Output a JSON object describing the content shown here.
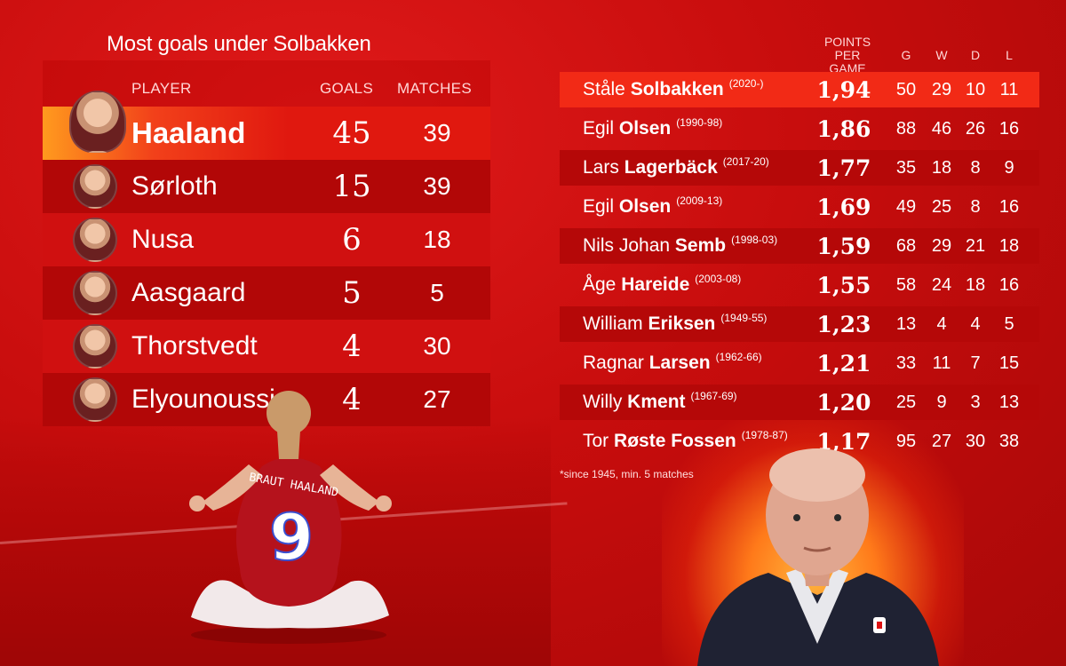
{
  "left": {
    "title": "Most goals under Solbakken",
    "headers": {
      "player": "PLAYER",
      "goals": "GOALS",
      "matches": "MATCHES"
    },
    "rows": [
      {
        "name": "Haaland",
        "goals": "45",
        "matches": "39"
      },
      {
        "name": "Sørloth",
        "goals": "15",
        "matches": "39"
      },
      {
        "name": "Nusa",
        "goals": "6",
        "matches": "18"
      },
      {
        "name": "Aasgaard",
        "goals": "5",
        "matches": "5"
      },
      {
        "name": "Thorstvedt",
        "goals": "4",
        "matches": "30"
      },
      {
        "name": "Elyounoussi",
        "goals": "4",
        "matches": "27"
      }
    ]
  },
  "right": {
    "headers": {
      "ppg_line1": "POINTS",
      "ppg_line2": "PER GAME",
      "g": "G",
      "w": "W",
      "d": "D",
      "l": "L"
    },
    "rows": [
      {
        "first": "Ståle",
        "last": "Solbakken",
        "years": "(2020-)",
        "ppg": "1,94",
        "g": "50",
        "w": "29",
        "d": "10",
        "l": "11"
      },
      {
        "first": "Egil",
        "last": "Olsen",
        "years": "(1990-98)",
        "ppg": "1,86",
        "g": "88",
        "w": "46",
        "d": "26",
        "l": "16"
      },
      {
        "first": "Lars",
        "last": "Lagerbäck",
        "years": "(2017-20)",
        "ppg": "1,77",
        "g": "35",
        "w": "18",
        "d": "8",
        "l": "9"
      },
      {
        "first": "Egil",
        "last": "Olsen",
        "years": "(2009-13)",
        "ppg": "1,69",
        "g": "49",
        "w": "25",
        "d": "8",
        "l": "16"
      },
      {
        "first": "Nils Johan",
        "last": "Semb",
        "years": "(1998-03)",
        "ppg": "1,59",
        "g": "68",
        "w": "29",
        "d": "21",
        "l": "18"
      },
      {
        "first": "Åge",
        "last": "Hareide",
        "years": "(2003-08)",
        "ppg": "1,55",
        "g": "58",
        "w": "24",
        "d": "18",
        "l": "16"
      },
      {
        "first": "William",
        "last": "Eriksen",
        "years": "(1949-55)",
        "ppg": "1,23",
        "g": "13",
        "w": "4",
        "d": "4",
        "l": "5"
      },
      {
        "first": "Ragnar",
        "last": "Larsen",
        "years": "(1962-66)",
        "ppg": "1,21",
        "g": "33",
        "w": "11",
        "d": "7",
        "l": "15"
      },
      {
        "first": "Willy",
        "last": "Kment",
        "years": "(1967-69)",
        "ppg": "1,20",
        "g": "25",
        "w": "9",
        "d": "3",
        "l": "13"
      },
      {
        "first": "Tor",
        "last": "Røste Fossen",
        "years": "(1978-87)",
        "ppg": "1,17",
        "g": "95",
        "w": "27",
        "d": "30",
        "l": "38"
      }
    ],
    "footnote": "*since 1945, min. 5 matches"
  },
  "jersey": {
    "name": "BRAUT HAALAND",
    "number": "9"
  },
  "colors": {
    "background": "#c80d0d",
    "highlight": "#f22a16",
    "stripe": "#b50808"
  }
}
